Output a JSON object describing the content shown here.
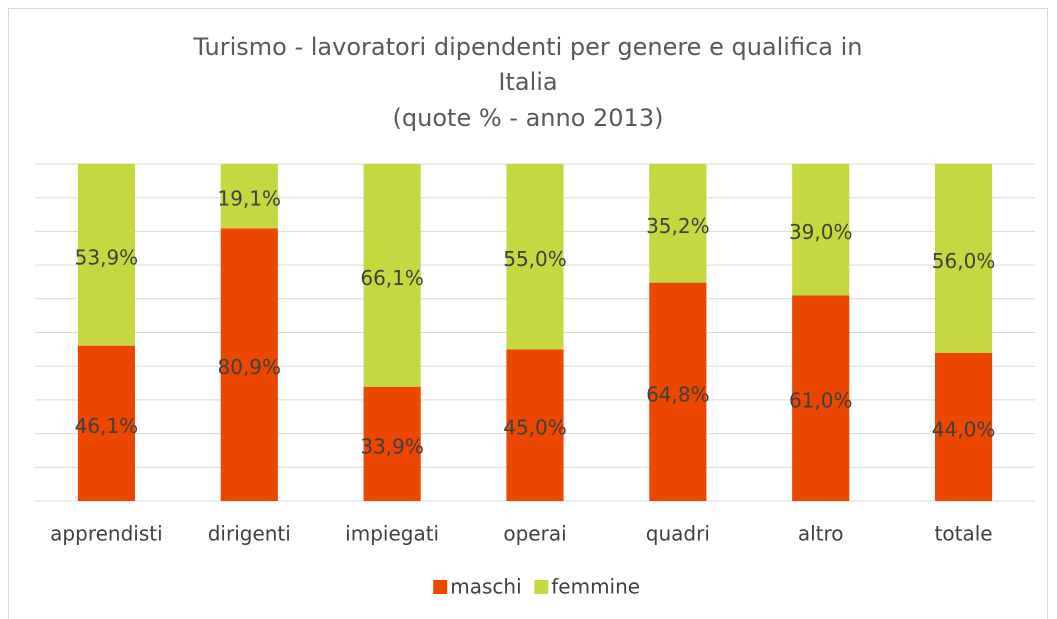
{
  "chart_data": {
    "type": "stacked_bar",
    "title": "Turismo - lavoratori dipendenti per genere e qualifica in Italia",
    "subtitle": "(quote % - anno 2013)",
    "categories": [
      "apprendisti",
      "dirigenti",
      "impiegati",
      "operai",
      "quadri",
      "altro",
      "totale"
    ],
    "series": [
      {
        "name": "maschi",
        "color": "#ec4700",
        "values": [
          46.1,
          80.9,
          33.9,
          45.0,
          64.8,
          61.0,
          44.0
        ],
        "value_labels": [
          "46,1%",
          "80,9%",
          "33,9%",
          "45,0%",
          "64,8%",
          "61,0%",
          "44,0%"
        ]
      },
      {
        "name": "femmine",
        "color": "#c6d840",
        "values": [
          53.9,
          19.1,
          66.1,
          55.0,
          35.2,
          39.0,
          56.0
        ],
        "value_labels": [
          "53,9%",
          "19,1%",
          "66,1%",
          "55,0%",
          "35,2%",
          "39,0%",
          "56,0%"
        ]
      }
    ],
    "ylim": [
      0,
      100
    ],
    "yticks": [
      0,
      10,
      20,
      30,
      40,
      50,
      60,
      70,
      80,
      90,
      100
    ],
    "grid": true,
    "legend": "bottom"
  }
}
